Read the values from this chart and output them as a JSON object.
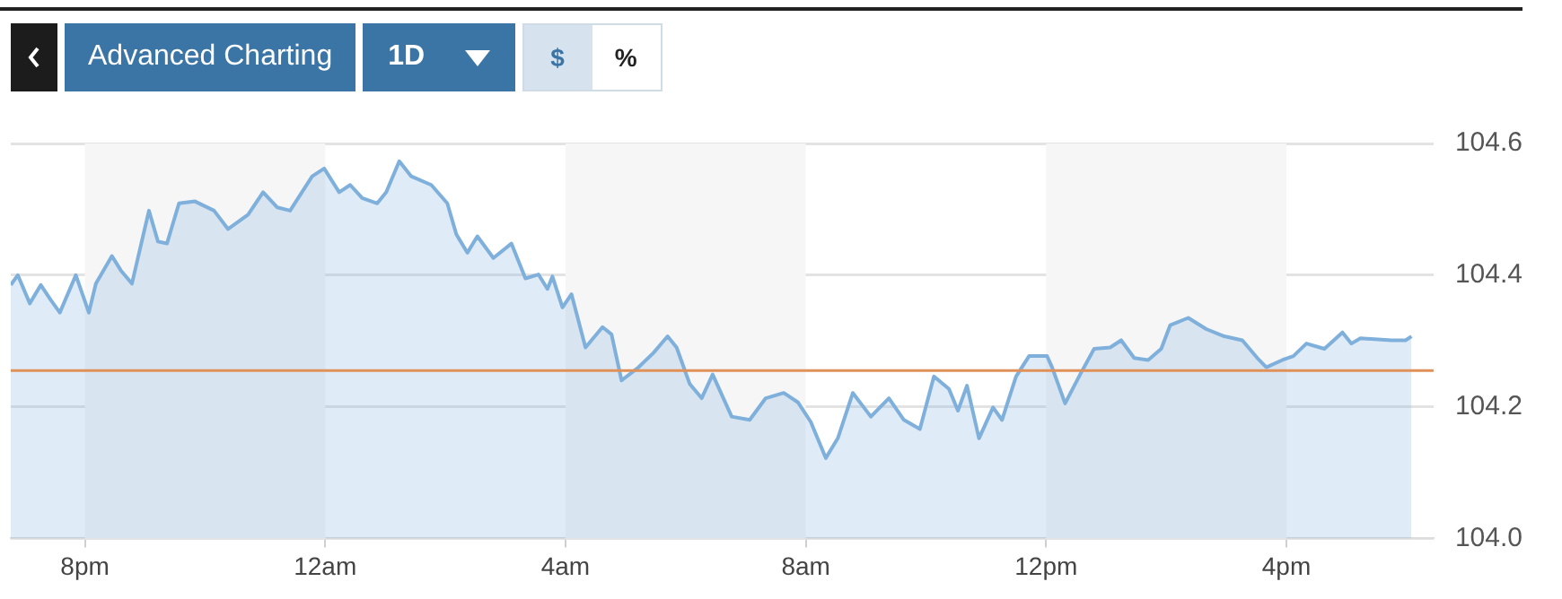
{
  "chart_data": {
    "type": "area",
    "annotations": [
      "Advanced Charting",
      "1D",
      "$",
      "%"
    ],
    "x": [
      "--01-01T18:46",
      "--01-01T18:53",
      "--01-01T19:05",
      "--01-01T19:16",
      "--01-01T19:26",
      "--01-01T19:35",
      "--01-01T19:51",
      "--01-01T20:04",
      "--01-01T20:11",
      "--01-01T20:27",
      "--01-01T20:36",
      "--01-01T20:47",
      "--01-01T21:04",
      "--01-01T21:13",
      "--01-01T21:22",
      "--01-01T21:34",
      "--01-01T21:50",
      "--01-01T22:09",
      "--01-01T22:23",
      "--01-01T22:43",
      "--01-01T22:58",
      "--01-01T23:12",
      "--01-01T23:25",
      "--01-01T23:47",
      "--01-01T23:59",
      "--01-02T00:14",
      "--01-02T00:25",
      "--01-02T00:37",
      "--01-02T00:52",
      "--01-02T01:01",
      "--01-02T01:14",
      "--01-02T01:26",
      "--01-02T01:46",
      "--01-02T02:02",
      "--01-02T02:11",
      "--01-02T02:22",
      "--01-02T02:32",
      "--01-02T02:48",
      "--01-02T03:06",
      "--01-02T03:20",
      "--01-02T03:33",
      "--01-02T03:42",
      "--01-02T03:47",
      "--01-02T03:57",
      "--01-02T04:06",
      "--01-02T04:20",
      "--01-02T04:37",
      "--01-02T04:46",
      "--01-02T04:56",
      "--01-02T05:13",
      "--01-02T05:28",
      "--01-02T05:42",
      "--01-02T05:51",
      "--01-02T06:04",
      "--01-02T06:16",
      "--01-02T06:27",
      "--01-02T06:46",
      "--01-02T07:04",
      "--01-02T07:20",
      "--01-02T07:38",
      "--01-02T07:52",
      "--01-02T08:05",
      "--01-02T08:20",
      "--01-02T08:32",
      "--01-02T08:47",
      "--01-02T09:05",
      "--01-02T09:23",
      "--01-02T09:38",
      "--01-02T09:54",
      "--01-02T10:08",
      "--01-02T10:23",
      "--01-02T10:32",
      "--01-02T10:41",
      "--01-02T10:53",
      "--01-02T11:07",
      "--01-02T11:16",
      "--01-02T11:30",
      "--01-02T11:43",
      "--01-02T12:01",
      "--01-02T12:06",
      "--01-02T12:19",
      "--01-02T12:34",
      "--01-02T12:48",
      "--01-02T13:04",
      "--01-02T13:15",
      "--01-02T13:28",
      "--01-02T13:42",
      "--01-02T13:55",
      "--01-02T14:04",
      "--01-02T14:22",
      "--01-02T14:40",
      "--01-02T14:58",
      "--01-02T15:16",
      "--01-02T15:31",
      "--01-02T15:40",
      "--01-02T15:56",
      "--01-02T16:07",
      "--01-02T16:20",
      "--01-02T16:38",
      "--01-02T16:56",
      "--01-02T17:05",
      "--01-02T17:14",
      "--01-02T17:45",
      "--01-02T17:59",
      "--01-02T18:05"
    ],
    "series": [
      {
        "color": "#7fb0dc",
        "values": [
          104.385,
          104.4,
          104.357,
          104.385,
          104.362,
          104.343,
          104.4,
          104.343,
          104.387,
          104.429,
          104.407,
          104.387,
          104.498,
          104.451,
          104.448,
          104.509,
          104.512,
          104.498,
          104.47,
          104.492,
          104.526,
          104.503,
          104.498,
          104.55,
          104.562,
          104.526,
          104.537,
          104.517,
          104.509,
          104.526,
          104.573,
          104.55,
          104.537,
          104.509,
          104.462,
          104.434,
          104.459,
          104.426,
          104.448,
          104.395,
          104.401,
          104.379,
          104.398,
          104.351,
          104.371,
          104.29,
          104.321,
          104.31,
          104.24,
          104.26,
          104.282,
          104.307,
          104.29,
          104.235,
          104.213,
          104.249,
          104.185,
          104.18,
          104.213,
          104.221,
          104.207,
          104.177,
          104.122,
          104.152,
          104.221,
          104.185,
          104.213,
          104.18,
          104.166,
          104.246,
          104.227,
          104.194,
          104.232,
          104.152,
          104.199,
          104.18,
          104.246,
          104.277,
          104.277,
          104.26,
          104.205,
          104.249,
          104.288,
          104.29,
          104.301,
          104.274,
          104.271,
          104.288,
          104.324,
          104.335,
          104.318,
          104.307,
          104.301,
          104.274,
          104.26,
          104.271,
          104.277,
          104.296,
          104.288,
          104.313,
          104.296,
          104.304,
          104.301,
          104.301,
          104.307
        ]
      }
    ],
    "xlim": [
      "--01-01T18:46",
      "--01-02T18:27"
    ],
    "xticks": [
      {
        "value": "--01-01T20:00",
        "label": "8pm"
      },
      {
        "value": "--01-02T00:00",
        "label": "12am"
      },
      {
        "value": "--01-02T04:00",
        "label": "4am"
      },
      {
        "value": "--01-02T08:00",
        "label": "8am"
      },
      {
        "value": "--01-02T12:00",
        "label": "12pm"
      },
      {
        "value": "--01-02T16:00",
        "label": "4pm"
      }
    ],
    "ylim": [
      104.0,
      104.6
    ],
    "yticks": [
      {
        "value": 104,
        "label": "104.0"
      },
      104.2,
      104.4,
      104.6
    ],
    "ref_lines": [
      {
        "axis": "y",
        "value": 104.255,
        "color": "#e0915a"
      }
    ],
    "bands": [
      {
        "axis": "x",
        "from": "--01-01T20:00",
        "to": "--01-02T00:00",
        "color": "#f6f6f6"
      },
      {
        "axis": "x",
        "from": "--01-02T04:00",
        "to": "--01-02T08:00",
        "color": "#f6f6f6"
      },
      {
        "axis": "x",
        "from": "--01-02T12:00",
        "to": "--01-02T16:00",
        "color": "#f6f6f6"
      }
    ],
    "grid": "y",
    "marker": "none",
    "legend": false
  }
}
